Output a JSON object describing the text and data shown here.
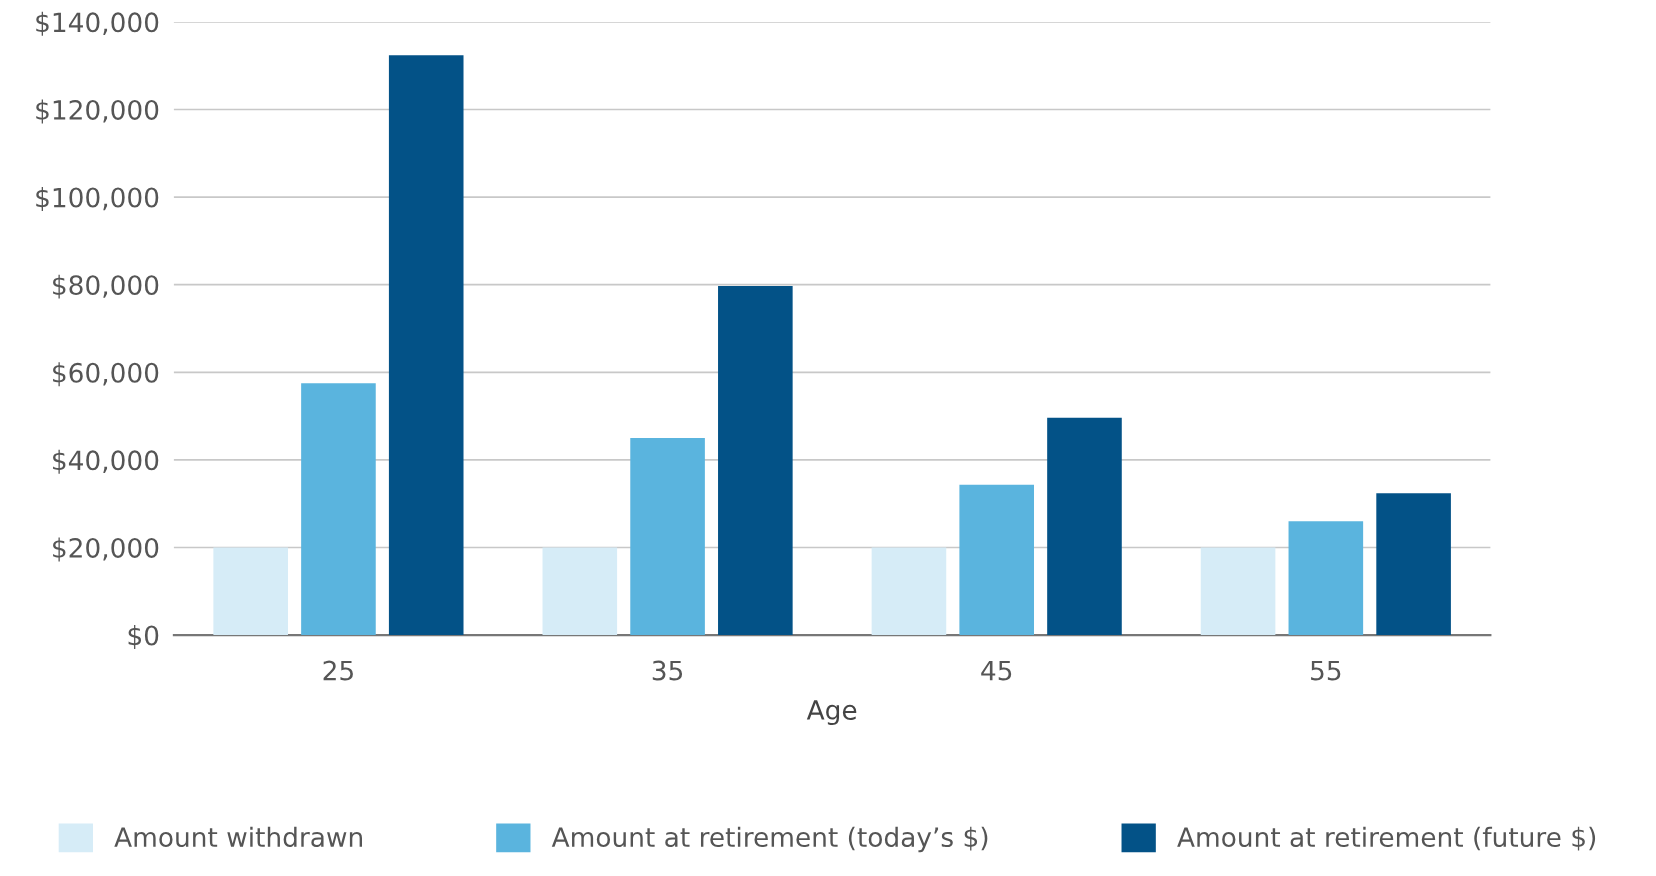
{
  "chart_data": {
    "type": "bar",
    "xlabel": "Age",
    "categories": [
      "25",
      "35",
      "45",
      "55"
    ],
    "series": [
      {
        "name": "Amount withdrawn",
        "color": "#d6ecf7",
        "values": [
          20000,
          20000,
          20000,
          20000
        ]
      },
      {
        "name": "Amount at retirement (today’s $)",
        "color": "#5ab4de",
        "values": [
          57500,
          45000,
          34300,
          26000
        ]
      },
      {
        "name": "Amount at retirement (future $)",
        "color": "#035287",
        "values": [
          132400,
          79700,
          49600,
          32400
        ]
      }
    ],
    "ylim": [
      0,
      140000
    ],
    "yticks": [
      {
        "value": 0,
        "label": "$0"
      },
      {
        "value": 20000,
        "label": "$20,000"
      },
      {
        "value": 40000,
        "label": "$40,000"
      },
      {
        "value": 60000,
        "label": "$60,000"
      },
      {
        "value": 80000,
        "label": "$80,000"
      },
      {
        "value": 100000,
        "label": "$100,000"
      },
      {
        "value": 120000,
        "label": "$120,000"
      },
      {
        "value": 140000,
        "label": "$140,000"
      }
    ],
    "grid": "y",
    "legend": "bottom"
  }
}
